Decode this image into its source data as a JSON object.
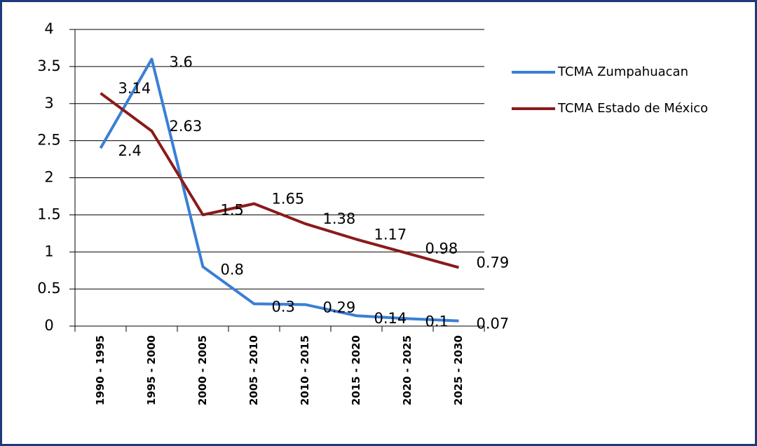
{
  "chart_data": {
    "type": "line",
    "categories": [
      "1990 - 1995",
      "1995 - 2000",
      "2000 - 2005",
      "2005 - 2010",
      "2010 - 2015",
      "2015 - 2020",
      "2020 - 2025",
      "2025 - 2030"
    ],
    "series": [
      {
        "name": "TCMA Zumpahuacan",
        "color": "#3a7fd5",
        "values": [
          2.4,
          3.6,
          0.8,
          0.3,
          0.29,
          0.14,
          0.1,
          0.07
        ]
      },
      {
        "name": "TCMA Estado de México",
        "color": "#8b1a1a",
        "values": [
          3.14,
          2.63,
          1.5,
          1.65,
          1.38,
          1.17,
          0.98,
          0.79
        ]
      }
    ],
    "ylim": [
      0,
      4
    ],
    "yticks": [
      0,
      0.5,
      1,
      1.5,
      2,
      2.5,
      3,
      3.5,
      4
    ],
    "grid": true
  }
}
